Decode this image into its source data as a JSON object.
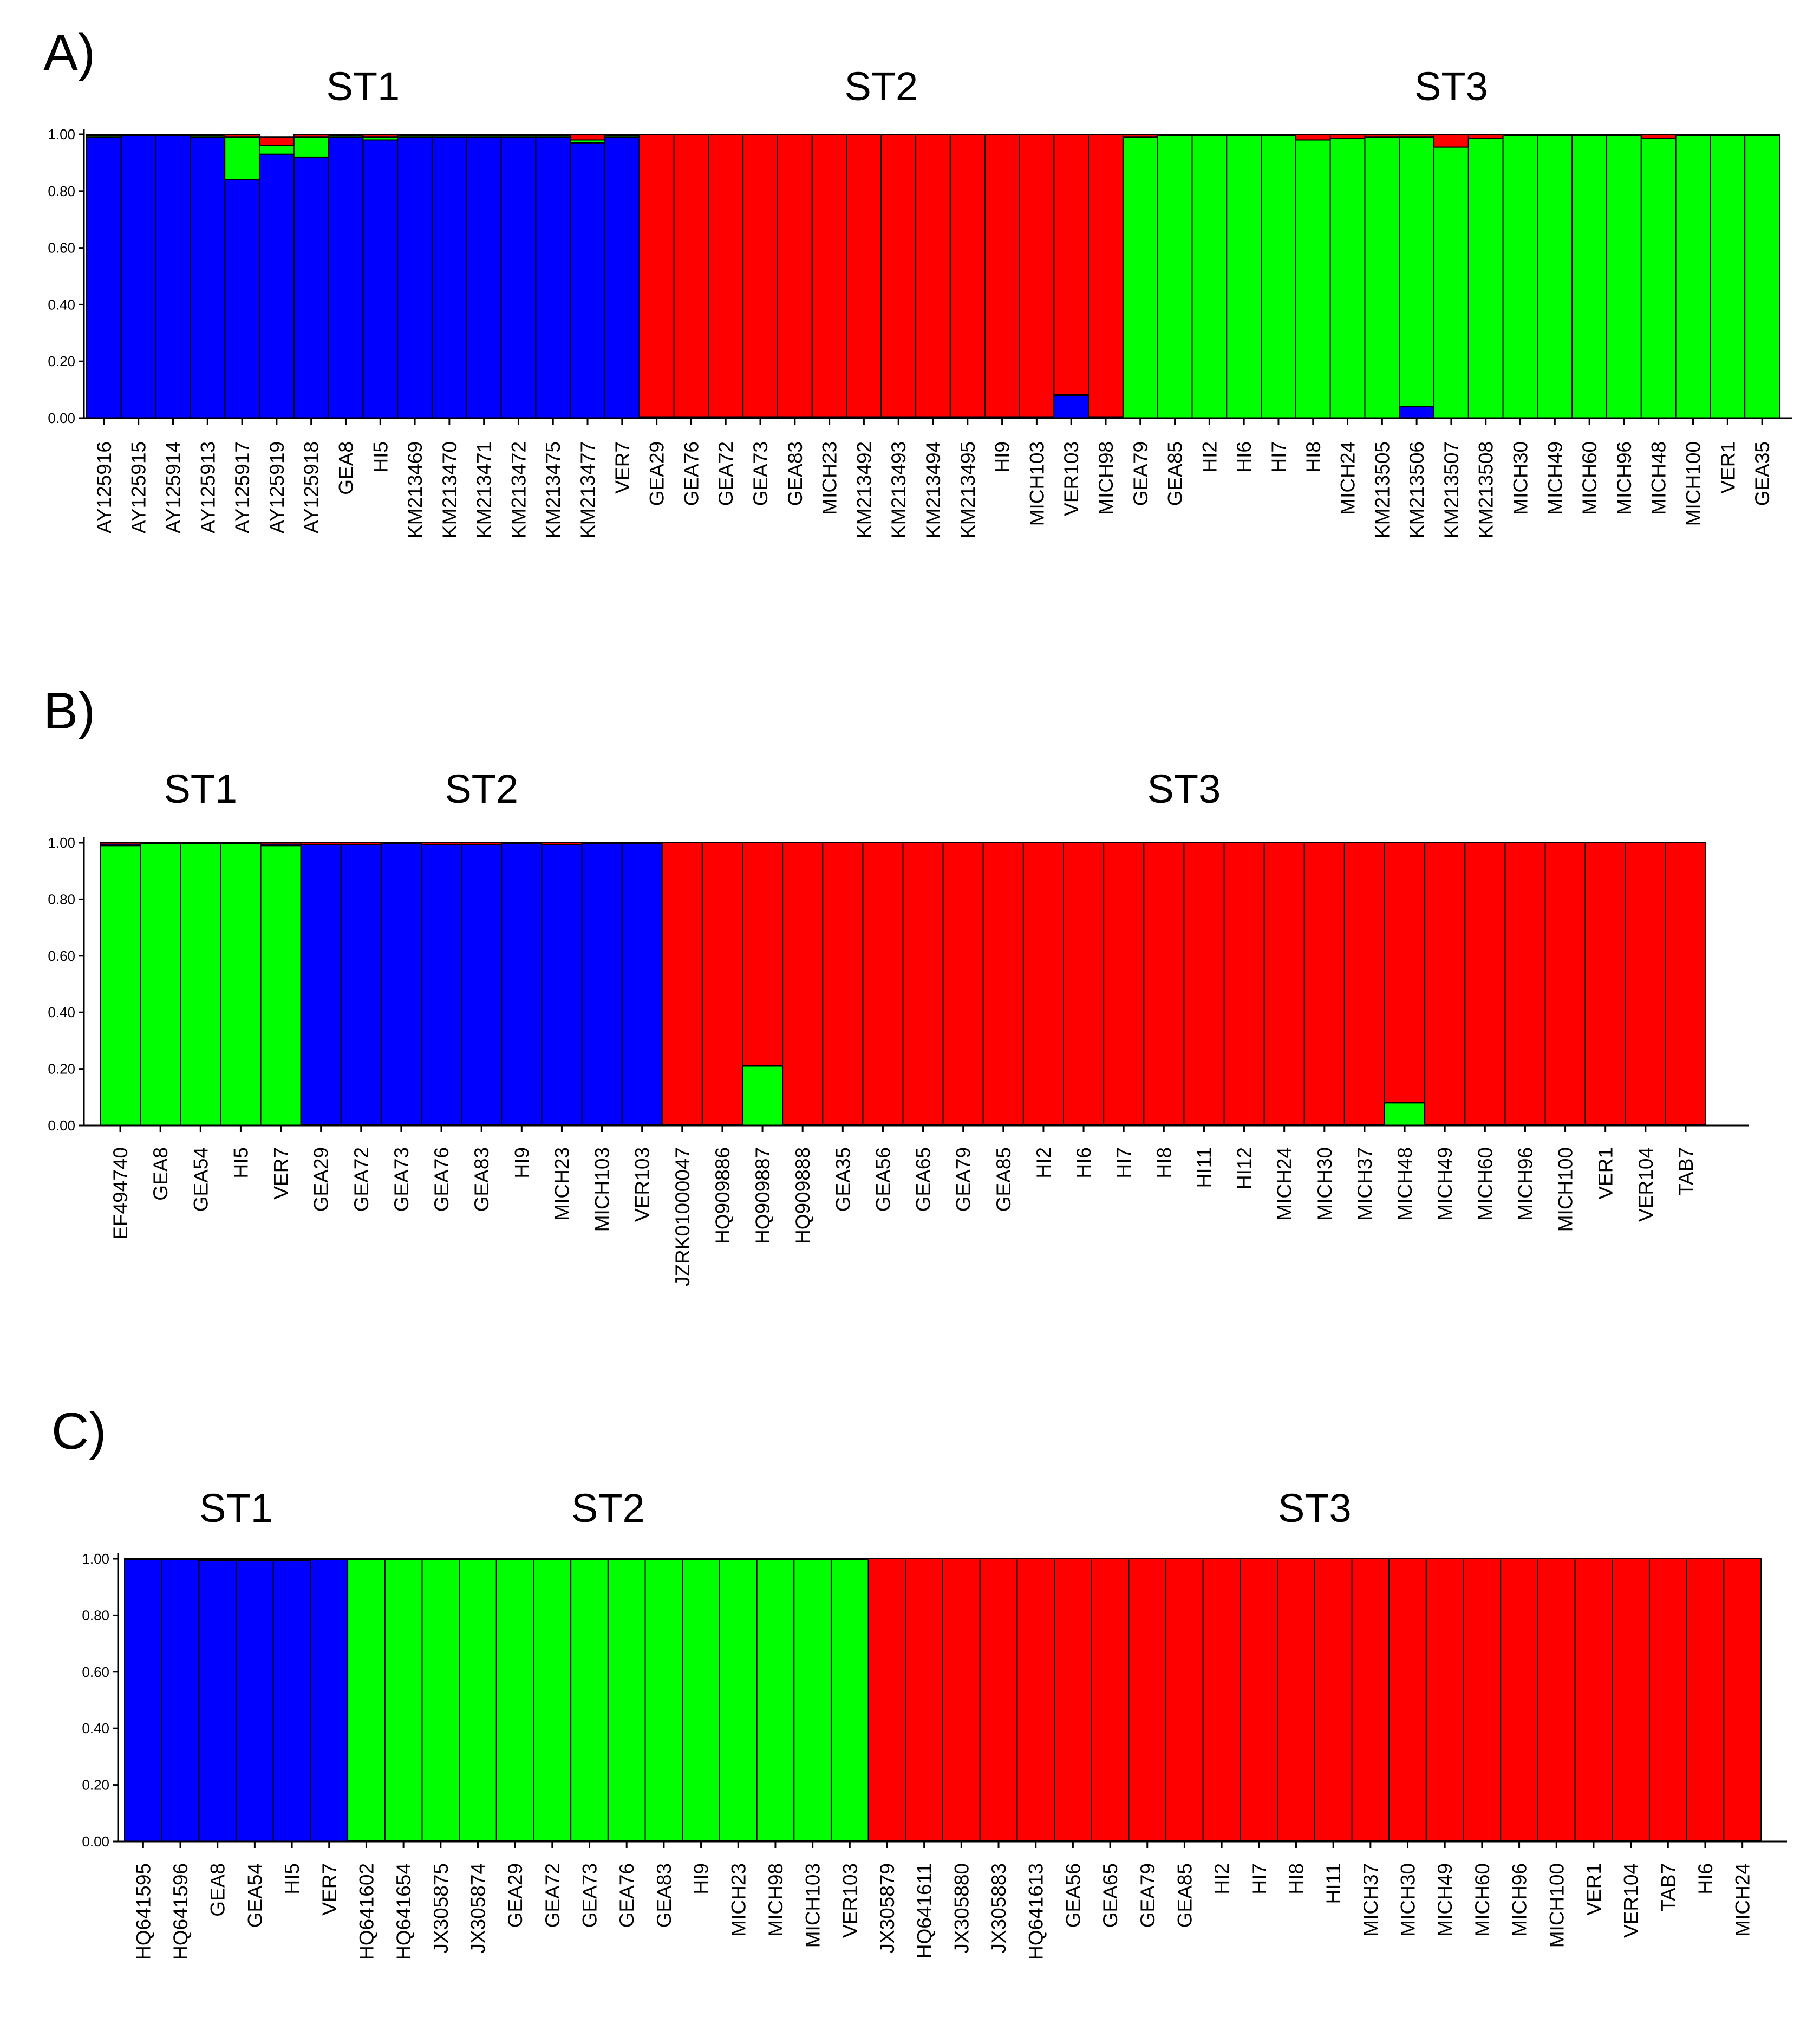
{
  "chart_data": [
    {
      "type": "bar",
      "stacked": true,
      "panel": "A)",
      "group_labels": [
        {
          "label": "ST1",
          "start": 0,
          "end": 16
        },
        {
          "label": "ST2",
          "start": 16,
          "end": 30
        },
        {
          "label": "ST3",
          "start": 30,
          "end": 49
        }
      ],
      "yticks": [
        "1.00",
        "0.80",
        "0.60",
        "0.40",
        "0.20",
        "0.00"
      ],
      "ylim": [
        0,
        1
      ],
      "colors": {
        "blue": "#0000ff",
        "red": "#ff0000",
        "green": "#00ff00"
      },
      "categories": [
        "AY125916",
        "AY125915",
        "AY125914",
        "AY125913",
        "AY125917",
        "AY125919",
        "AY125918",
        "GEA8",
        "HI5",
        "KM213469",
        "KM213470",
        "KM213471",
        "KM213472",
        "KM213475",
        "KM213477",
        "VER7",
        "GEA29",
        "GEA76",
        "GEA72",
        "GEA73",
        "GEA83",
        "MICH23",
        "KM213492",
        "KM213493",
        "KM213494",
        "KM213495",
        "HI9",
        "MICH103",
        "VER103",
        "MICH98",
        "GEA79",
        "GEA85",
        "HI2",
        "HI6",
        "HI7",
        "HI8",
        "MICH24",
        "KM213505",
        "KM213506",
        "KM213507",
        "KM213508",
        "MICH30",
        "MICH49",
        "MICH60",
        "MICH96",
        "MICH48",
        "MICH100",
        "VER1",
        "GEA35"
      ],
      "series": [
        {
          "name": "blue",
          "values": [
            0.99,
            0.995,
            0.995,
            0.99,
            0.84,
            0.93,
            0.92,
            0.99,
            0.98,
            0.99,
            0.99,
            0.99,
            0.99,
            0.99,
            0.97,
            0.99,
            0,
            0,
            0,
            0,
            0,
            0,
            0,
            0,
            0,
            0,
            0,
            0,
            0.08,
            0,
            0,
            0,
            0,
            0,
            0,
            0,
            0,
            0,
            0.04,
            0,
            0,
            0,
            0,
            0,
            0,
            0,
            0,
            0,
            0
          ]
        },
        {
          "name": "green",
          "values": [
            0.005,
            0.002,
            0.002,
            0.005,
            0.15,
            0.03,
            0.07,
            0.005,
            0.01,
            0.005,
            0.005,
            0.005,
            0.005,
            0.005,
            0.01,
            0.005,
            0.003,
            0.003,
            0.003,
            0.003,
            0.003,
            0.003,
            0.003,
            0.003,
            0.003,
            0.003,
            0.003,
            0.003,
            0.003,
            0.003,
            0.99,
            0.995,
            0.995,
            0.995,
            0.995,
            0.98,
            0.985,
            0.99,
            0.95,
            0.955,
            0.985,
            0.995,
            0.995,
            0.995,
            0.995,
            0.985,
            0.995,
            0.995,
            0.995
          ]
        },
        {
          "name": "red",
          "values": [
            0.005,
            0.003,
            0.003,
            0.005,
            0.01,
            0.03,
            0.01,
            0.005,
            0.01,
            0.005,
            0.005,
            0.005,
            0.005,
            0.005,
            0.02,
            0.005,
            0.997,
            0.997,
            0.997,
            0.997,
            0.997,
            0.997,
            0.997,
            0.997,
            0.997,
            0.997,
            0.997,
            0.997,
            0.917,
            0.997,
            0.01,
            0.005,
            0.005,
            0.005,
            0.005,
            0.02,
            0.015,
            0.01,
            0.01,
            0.045,
            0.015,
            0.005,
            0.005,
            0.005,
            0.005,
            0.015,
            0.005,
            0.005,
            0.005
          ]
        }
      ]
    },
    {
      "type": "bar",
      "stacked": true,
      "panel": "B)",
      "group_labels": [
        {
          "label": "ST1",
          "start": 0,
          "end": 5
        },
        {
          "label": "ST2",
          "start": 5,
          "end": 14
        },
        {
          "label": "ST3",
          "start": 14,
          "end": 40
        }
      ],
      "yticks": [
        "1.00",
        "0.80",
        "0.60",
        "0.40",
        "0.20",
        "0.00"
      ],
      "ylim": [
        0,
        1
      ],
      "colors": {
        "blue": "#0000ff",
        "red": "#ff0000",
        "green": "#00ff00"
      },
      "categories": [
        "EF494740",
        "GEA8",
        "GEA54",
        "HI5",
        "VER7",
        "GEA29",
        "GEA72",
        "GEA73",
        "GEA76",
        "GEA83",
        "HI9",
        "MICH23",
        "MICH103",
        "VER103",
        "JZRK01000047",
        "HQ909886",
        "HQ909887",
        "HQ909888",
        "GEA35",
        "GEA56",
        "GEA65",
        "GEA79",
        "GEA85",
        "HI2",
        "HI6",
        "HI7",
        "HI8",
        "HI11",
        "HI12",
        "MICH24",
        "MICH30",
        "MICH37",
        "MICH48",
        "MICH49",
        "MICH60",
        "MICH96",
        "MICH100",
        "VER1",
        "VER104",
        "TAB7"
      ],
      "series": [
        {
          "name": "green",
          "values": [
            0.99,
            0.998,
            0.998,
            0.998,
            0.99,
            0.003,
            0.003,
            0.003,
            0.003,
            0.003,
            0.003,
            0.003,
            0.003,
            0.003,
            0.002,
            0.002,
            0.21,
            0.002,
            0.002,
            0.002,
            0.002,
            0.002,
            0.002,
            0.002,
            0.002,
            0.002,
            0.002,
            0.002,
            0.002,
            0.002,
            0.002,
            0.002,
            0.08,
            0.002,
            0.002,
            0.002,
            0.002,
            0.002,
            0.002,
            0.002
          ]
        },
        {
          "name": "blue",
          "values": [
            0.005,
            0.001,
            0.001,
            0.001,
            0.005,
            0.99,
            0.99,
            0.995,
            0.99,
            0.99,
            0.995,
            0.99,
            0.995,
            0.995,
            0.001,
            0.001,
            0.001,
            0.001,
            0.001,
            0.001,
            0.001,
            0.001,
            0.001,
            0.001,
            0.001,
            0.001,
            0.001,
            0.001,
            0.001,
            0.001,
            0.001,
            0.001,
            0.001,
            0.001,
            0.001,
            0.001,
            0.001,
            0.001,
            0.001,
            0.001
          ]
        },
        {
          "name": "red",
          "values": [
            0.005,
            0.001,
            0.001,
            0.001,
            0.005,
            0.007,
            0.007,
            0.002,
            0.007,
            0.007,
            0.002,
            0.007,
            0.002,
            0.002,
            0.997,
            0.997,
            0.789,
            0.997,
            0.997,
            0.997,
            0.997,
            0.997,
            0.997,
            0.997,
            0.997,
            0.997,
            0.997,
            0.997,
            0.997,
            0.997,
            0.997,
            0.997,
            0.919,
            0.997,
            0.997,
            0.997,
            0.997,
            0.997,
            0.997,
            0.997
          ]
        }
      ]
    },
    {
      "type": "bar",
      "stacked": true,
      "panel": "C)",
      "group_labels": [
        {
          "label": "ST1",
          "start": 0,
          "end": 6
        },
        {
          "label": "ST2",
          "start": 6,
          "end": 20
        },
        {
          "label": "ST3",
          "start": 20,
          "end": 44
        }
      ],
      "yticks": [
        "1.00",
        "0.80",
        "0.60",
        "0.40",
        "0.20",
        "0.00"
      ],
      "ylim": [
        0,
        1
      ],
      "colors": {
        "blue": "#0000ff",
        "red": "#ff0000",
        "green": "#00ff00"
      },
      "categories": [
        "HQ641595",
        "HQ641596",
        "GEA8",
        "GEA54",
        "HI5",
        "VER7",
        "HQ641602",
        "HQ641654",
        "JX305875",
        "JX305874",
        "GEA29",
        "GEA72",
        "GEA73",
        "GEA76",
        "GEA83",
        "HI9",
        "MICH23",
        "MICH98",
        "MICH103",
        "VER103",
        "JX305879",
        "HQ641611",
        "JX305880",
        "JX305883",
        "HQ641613",
        "GEA56",
        "GEA65",
        "GEA79",
        "GEA85",
        "HI2",
        "HI7",
        "HI8",
        "HI11",
        "MICH37",
        "MICH30",
        "MICH49",
        "MICH60",
        "MICH96",
        "MICH100",
        "VER1",
        "VER104",
        "TAB7",
        "HI6",
        "MICH24"
      ],
      "series": [
        {
          "name": "blue",
          "values": [
            0.998,
            0.998,
            0.994,
            0.994,
            0.994,
            0.998,
            0.003,
            0.002,
            0.003,
            0.002,
            0.003,
            0.003,
            0.003,
            0.003,
            0.002,
            0.003,
            0.002,
            0.003,
            0.002,
            0.002,
            0.001,
            0.001,
            0.001,
            0.001,
            0.001,
            0.001,
            0.001,
            0.001,
            0.001,
            0.001,
            0.001,
            0.001,
            0.001,
            0.001,
            0.001,
            0.001,
            0.001,
            0.001,
            0.001,
            0.001,
            0.001,
            0.001,
            0.001,
            0.001
          ]
        },
        {
          "name": "green",
          "values": [
            0.001,
            0.001,
            0.003,
            0.003,
            0.003,
            0.001,
            0.994,
            0.996,
            0.994,
            0.996,
            0.994,
            0.994,
            0.994,
            0.994,
            0.996,
            0.994,
            0.996,
            0.994,
            0.996,
            0.996,
            0.001,
            0.001,
            0.001,
            0.001,
            0.001,
            0.001,
            0.001,
            0.001,
            0.001,
            0.001,
            0.001,
            0.001,
            0.001,
            0.001,
            0.001,
            0.001,
            0.001,
            0.001,
            0.001,
            0.001,
            0.001,
            0.001,
            0.001,
            0.001
          ]
        },
        {
          "name": "red",
          "values": [
            0.001,
            0.001,
            0.003,
            0.003,
            0.003,
            0.001,
            0.003,
            0.002,
            0.003,
            0.002,
            0.003,
            0.003,
            0.003,
            0.003,
            0.002,
            0.003,
            0.002,
            0.003,
            0.002,
            0.002,
            0.998,
            0.998,
            0.998,
            0.998,
            0.998,
            0.998,
            0.998,
            0.998,
            0.998,
            0.998,
            0.998,
            0.998,
            0.998,
            0.998,
            0.998,
            0.998,
            0.998,
            0.998,
            0.998,
            0.998,
            0.998,
            0.998,
            0.998,
            0.998
          ]
        }
      ]
    }
  ]
}
